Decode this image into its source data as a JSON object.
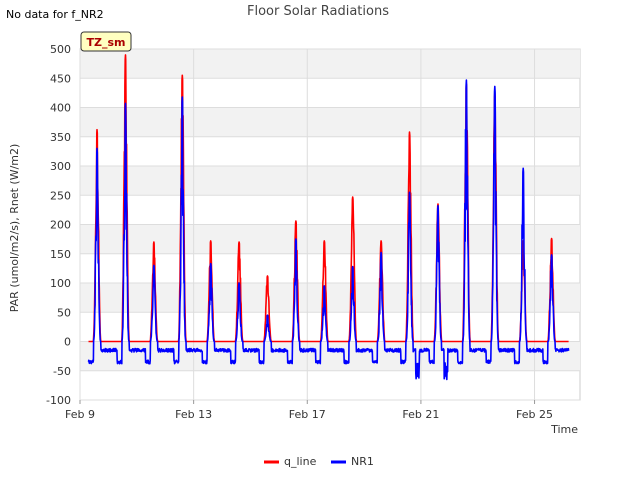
{
  "no_data_note": "No data for f_NR2",
  "site_badge": "TZ_sm",
  "chart_data": {
    "type": "line",
    "title": "Floor Solar Radiations",
    "xlabel": "Time",
    "ylabel": "PAR (umol/m2/s), Rnet (W/m2)",
    "xlim": [
      9.0,
      26.6
    ],
    "ylim": [
      -100,
      500
    ],
    "yticks": [
      -100,
      -50,
      0,
      50,
      100,
      150,
      200,
      250,
      300,
      350,
      400,
      450,
      500
    ],
    "xticks": [
      {
        "value": 9,
        "label": "Feb 9"
      },
      {
        "value": 13,
        "label": "Feb 13"
      },
      {
        "value": 17,
        "label": "Feb 17"
      },
      {
        "value": 21,
        "label": "Feb 21"
      },
      {
        "value": 25,
        "label": "Feb 25"
      }
    ],
    "grid": true,
    "legend_position": "bottom-center",
    "series": [
      {
        "name": "q_line",
        "color": "#ff0000",
        "baseline": 0,
        "peaks": [
          {
            "day": 9.6,
            "peak": 362
          },
          {
            "day": 10.6,
            "peak": 490
          },
          {
            "day": 11.6,
            "peak": 170
          },
          {
            "day": 12.6,
            "peak": 455
          },
          {
            "day": 13.6,
            "peak": 172
          },
          {
            "day": 14.6,
            "peak": 170
          },
          {
            "day": 15.6,
            "peak": 112
          },
          {
            "day": 16.6,
            "peak": 206
          },
          {
            "day": 17.6,
            "peak": 172
          },
          {
            "day": 18.6,
            "peak": 247
          },
          {
            "day": 19.6,
            "peak": 172
          },
          {
            "day": 20.6,
            "peak": 358
          },
          {
            "day": 21.6,
            "peak": 235
          },
          {
            "day": 22.6,
            "peak": 440
          },
          {
            "day": 23.6,
            "peak": 425
          },
          {
            "day": 24.6,
            "peak": 172
          },
          {
            "day": 25.6,
            "peak": 176
          }
        ]
      },
      {
        "name": "NR1",
        "color": "#0000ff",
        "night_min": -35,
        "peaks": [
          {
            "day": 9.6,
            "peak": 330
          },
          {
            "day": 10.6,
            "peak": 407
          },
          {
            "day": 11.6,
            "peak": 130
          },
          {
            "day": 12.6,
            "peak": 418
          },
          {
            "day": 13.6,
            "peak": 133
          },
          {
            "day": 14.6,
            "peak": 100
          },
          {
            "day": 15.6,
            "peak": 45
          },
          {
            "day": 16.6,
            "peak": 175
          },
          {
            "day": 17.6,
            "peak": 95
          },
          {
            "day": 18.6,
            "peak": 128
          },
          {
            "day": 19.6,
            "peak": 152
          },
          {
            "day": 20.6,
            "peak": 255
          },
          {
            "day": 21.6,
            "peak": 232
          },
          {
            "day": 22.6,
            "peak": 447
          },
          {
            "day": 23.6,
            "peak": 436
          },
          {
            "day": 24.6,
            "peak": 296
          },
          {
            "day": 25.6,
            "peak": 148
          }
        ]
      }
    ]
  }
}
